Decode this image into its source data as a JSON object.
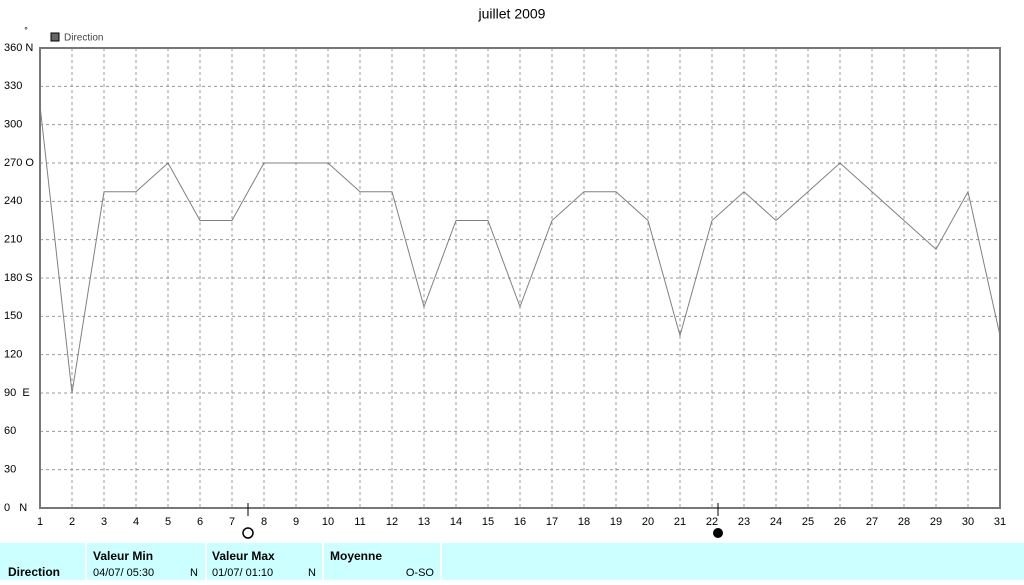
{
  "chart_data": {
    "type": "line",
    "title": "juillet 2009",
    "y_unit": "°",
    "x": [
      1,
      2,
      3,
      4,
      5,
      6,
      7,
      8,
      9,
      10,
      11,
      12,
      13,
      14,
      15,
      16,
      17,
      18,
      19,
      20,
      21,
      22,
      23,
      24,
      25,
      26,
      27,
      28,
      29,
      30,
      31
    ],
    "series": [
      {
        "name": "Direction",
        "color": "#808080",
        "values": [
          315,
          90,
          247.5,
          247.5,
          270,
          225,
          225,
          270,
          270,
          270,
          247.5,
          247.5,
          157.5,
          225,
          225,
          157.5,
          225,
          247.5,
          247.5,
          225,
          135,
          225,
          247.5,
          225,
          247.5,
          270,
          247.5,
          225,
          202.5,
          247.5,
          135
        ]
      }
    ],
    "xlim": [
      1,
      31
    ],
    "ylim": [
      0,
      360
    ],
    "xticks": [
      1,
      2,
      3,
      4,
      5,
      6,
      7,
      8,
      9,
      10,
      11,
      12,
      13,
      14,
      15,
      16,
      17,
      18,
      19,
      20,
      21,
      22,
      23,
      24,
      25,
      26,
      27,
      28,
      29,
      30,
      31
    ],
    "yticks": [
      {
        "value": 0,
        "label": "0   N"
      },
      30,
      60,
      {
        "value": 90,
        "label": "90  E"
      },
      120,
      150,
      {
        "value": 180,
        "label": "180 S"
      },
      210,
      240,
      {
        "value": 270,
        "label": "270 O"
      },
      300,
      330,
      {
        "value": 360,
        "label": "360 N"
      }
    ],
    "grid": true
  },
  "footer": {
    "row_label": "Direction",
    "columns": [
      {
        "header": "Valeur Min",
        "date": "04/07/  05:30",
        "direction": "N"
      },
      {
        "header": "Valeur Max",
        "date": "01/07/  01:10",
        "direction": "N"
      },
      {
        "header": "Moyenne",
        "value": "O-SO"
      }
    ]
  }
}
